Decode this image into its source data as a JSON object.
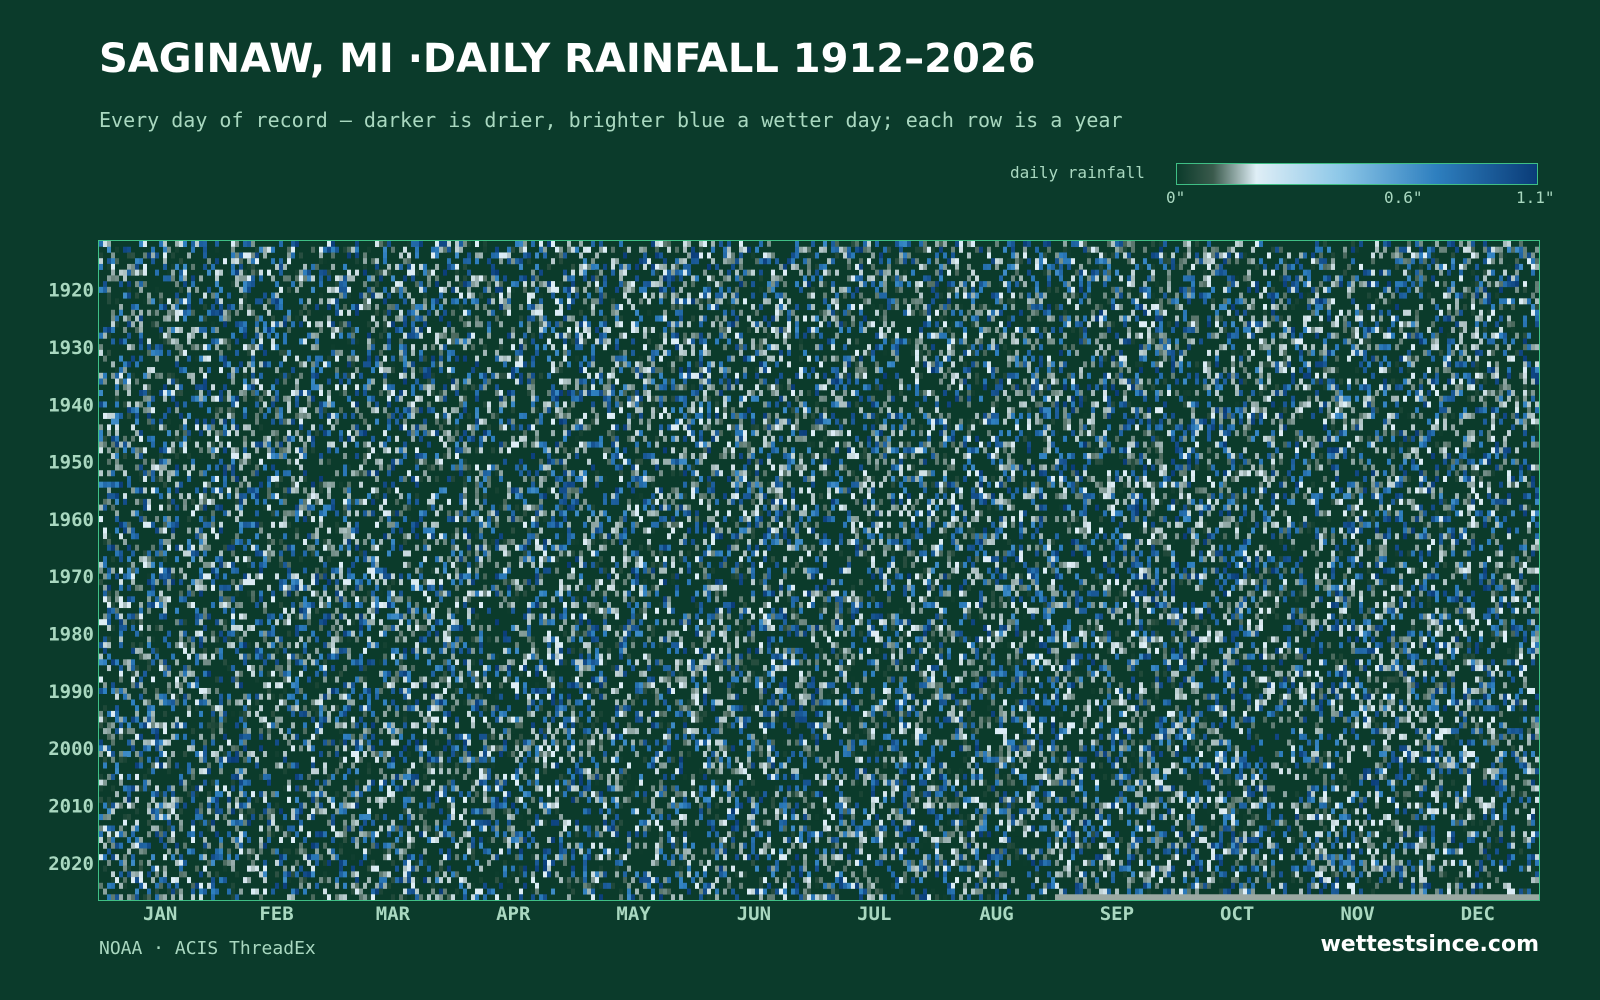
{
  "header": {
    "title": "SAGINAW, MI ·DAILY RAINFALL 1912–2026",
    "subtitle": "Every day of record — darker is drier, brighter blue a wetter day; each row is a year"
  },
  "legend": {
    "label": "daily rainfall",
    "ticks": [
      {
        "value": 0,
        "label": "0\""
      },
      {
        "value": 0.6,
        "label": "0.6\""
      },
      {
        "value": 1.1,
        "label": "1.1\""
      }
    ]
  },
  "footer": {
    "source": "NOAA · ACIS ThreadEx",
    "brand": "wettestsince.com"
  },
  "colors": {
    "background": "#0b3b2b",
    "frame": "#3fbf85",
    "scale": [
      "#0b3b2b",
      "#3a5a4c",
      "#dfeef6",
      "#8ec8e8",
      "#2e7fbf",
      "#0a3c78"
    ]
  },
  "chart_data": {
    "type": "heatmap",
    "x_axis": "day of year",
    "y_axis": "year",
    "x_tick_labels": [
      "JAN",
      "FEB",
      "MAR",
      "APR",
      "MAY",
      "JUN",
      "JUL",
      "AUG",
      "SEP",
      "OCT",
      "NOV",
      "DEC"
    ],
    "y_ticks": [
      1920,
      1930,
      1940,
      1950,
      1960,
      1970,
      1980,
      1990,
      2000,
      2010,
      2020
    ],
    "year_range": [
      1912,
      2026
    ],
    "value_range": [
      0,
      1.1
    ],
    "value_unit": "inches",
    "data_note_current_year_through": "August"
  }
}
